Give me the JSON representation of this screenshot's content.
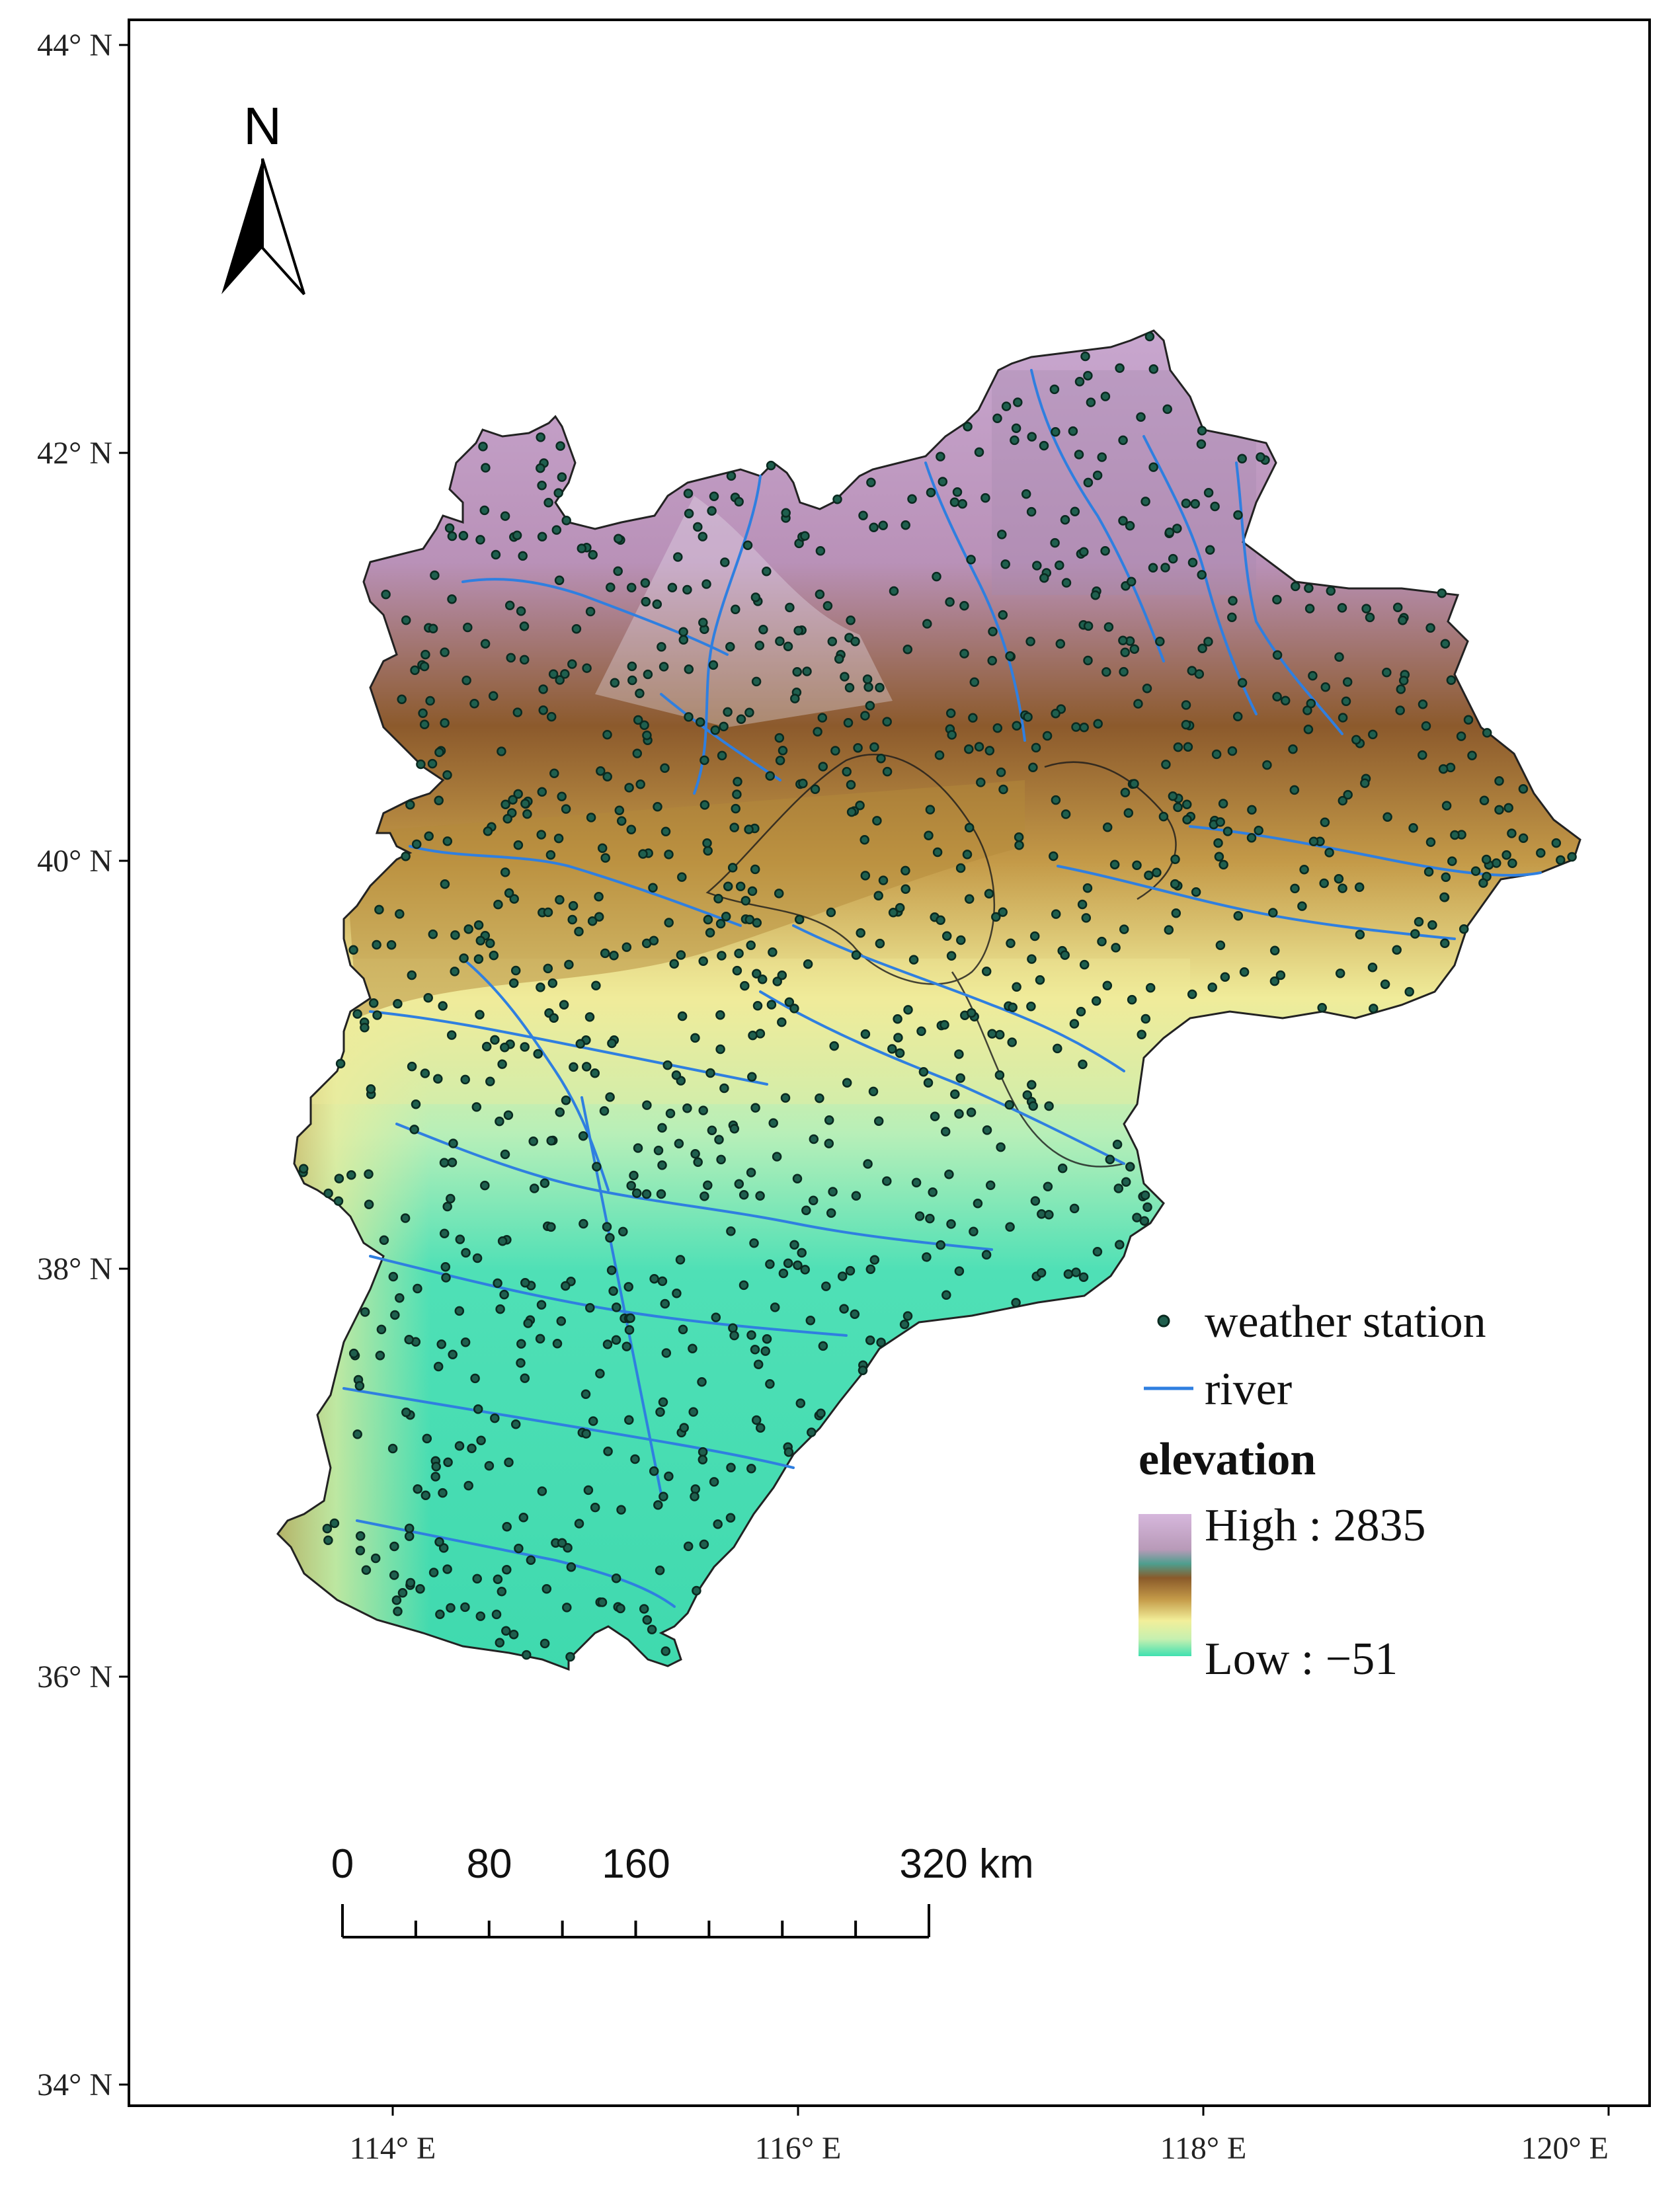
{
  "map": {
    "lat_ticks": [
      "44° N",
      "42° N",
      "40° N",
      "38° N",
      "36° N",
      "34° N"
    ],
    "lon_ticks": [
      "114° E",
      "116° E",
      "118° E",
      "120° E"
    ],
    "lat_values": [
      44,
      42,
      40,
      38,
      36,
      34
    ],
    "lon_values": [
      114,
      116,
      118,
      120
    ]
  },
  "north_arrow": {
    "label": "N"
  },
  "scale_bar": {
    "labels": [
      "0",
      "80",
      "160",
      "320 km"
    ],
    "distances_km": [
      0,
      80,
      160,
      320
    ],
    "segments": 8
  },
  "legend": {
    "station_label": "weather station",
    "river_label": "river",
    "elevation_title": "elevation",
    "high_label": "High : 2835",
    "low_label": "Low : −51",
    "colors": {
      "station": "#1f5f4e",
      "river": "#2f7fe0",
      "elev_high": "#c9a8d0",
      "elev_mid_high": "#8a5a2a",
      "elev_mid": "#b48a3a",
      "elev_low_mid": "#f2ef9a",
      "elev_low": "#3fe0b0"
    }
  }
}
